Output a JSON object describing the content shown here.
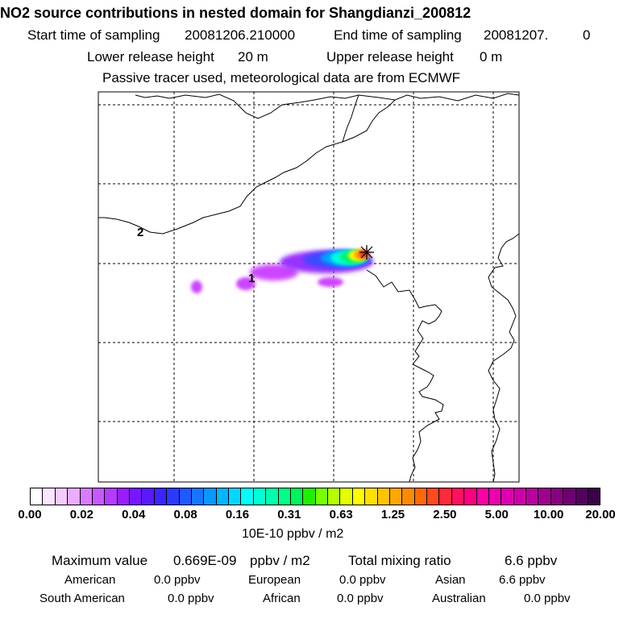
{
  "title": "NO2 source contributions in nested domain for Shangdianzi_200812",
  "sampling": {
    "start_label": "Start time of sampling",
    "start_value": "20081206.210000",
    "end_label": "End time of sampling",
    "end_value": "20081207.",
    "end_suffix": "0"
  },
  "release": {
    "lower_label": "Lower release height",
    "lower_value": "20 m",
    "upper_label": "Upper release height",
    "upper_value": "0 m"
  },
  "note": "Passive tracer used, meteorological data are from ECMWF",
  "map": {
    "contour_labels": [
      "2",
      "1"
    ],
    "receptor_marker": "star-marker",
    "plume_colors": [
      "#cc44ff",
      "#9a30ff",
      "#3a4bff",
      "#00a0ff",
      "#00ffdd",
      "#00f070",
      "#ffff00",
      "#ff9900",
      "#ff2020"
    ]
  },
  "colorbar": {
    "tick_labels": [
      "0.00",
      "0.02",
      "0.04",
      "0.08",
      "0.16",
      "0.31",
      "0.63",
      "1.25",
      "2.50",
      "5.00",
      "10.00",
      "20.00"
    ],
    "colors": [
      "#ffffff",
      "#fbe6ff",
      "#f4cbff",
      "#ebadff",
      "#d97bff",
      "#c859ff",
      "#b53bff",
      "#9a1cff",
      "#7a16ff",
      "#5a1aff",
      "#3d24ff",
      "#2a3bff",
      "#1f5aff",
      "#1577ff",
      "#0a97ff",
      "#00b7ff",
      "#00d9ff",
      "#00ffff",
      "#00ffd5",
      "#00ffae",
      "#00ff86",
      "#00f55a",
      "#20f000",
      "#7aff00",
      "#b5ff00",
      "#e3ff00",
      "#ffff00",
      "#ffe000",
      "#ffc400",
      "#ffa800",
      "#ff8a00",
      "#ff6a00",
      "#ff4a20",
      "#ff2a3a",
      "#ff1060",
      "#ff0080",
      "#ff00a8",
      "#ee00b0",
      "#dd00b0",
      "#cc00a8",
      "#b8009e",
      "#a00090",
      "#880080",
      "#6e0070",
      "#550060",
      "#3b004a"
    ],
    "unit": "10E-10 ppbv / m2"
  },
  "summary": {
    "max_label": "Maximum value",
    "max_value": "0.669E-09",
    "max_unit": "ppbv / m2",
    "total_label": "Total mixing ratio",
    "total_value": "6.6 ppbv"
  },
  "regions": [
    {
      "name": "American",
      "value": "0.0 ppbv"
    },
    {
      "name": "European",
      "value": "0.0 ppbv"
    },
    {
      "name": "Asian",
      "value": "6.6 ppbv"
    },
    {
      "name": "South American",
      "value": "0.0 ppbv"
    },
    {
      "name": "African",
      "value": "0.0 ppbv"
    },
    {
      "name": "Australian",
      "value": "0.0 ppbv"
    }
  ]
}
